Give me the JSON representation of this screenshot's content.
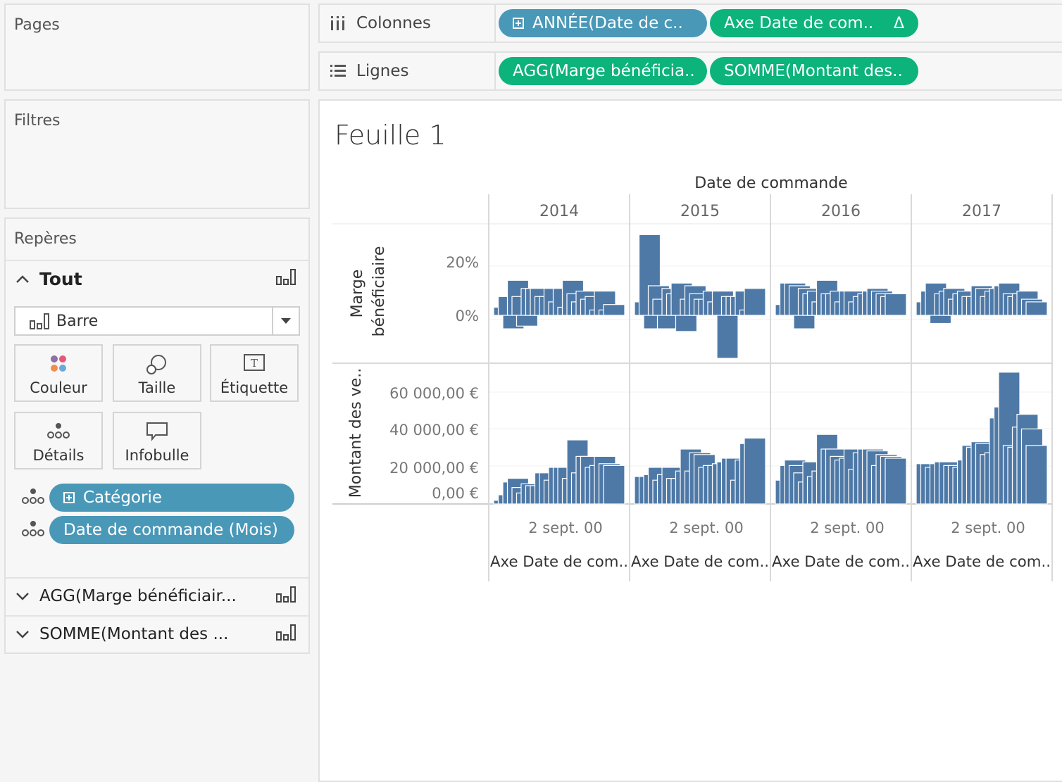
{
  "pages": {
    "title": "Pages"
  },
  "filters": {
    "title": "Filtres"
  },
  "marks": {
    "title": "Repères",
    "all_label": "Tout",
    "mark_type": "Barre",
    "buttons": {
      "color": "Couleur",
      "size": "Taille",
      "label": "Étiquette",
      "detail": "Détails",
      "tooltip": "Infobulle"
    },
    "fields": [
      "Catégorie",
      "Date de commande (Mois)"
    ],
    "sections": [
      "AGG(Marge bénéficiair...",
      "SOMME(Montant des ..."
    ]
  },
  "shelves": {
    "columns_label": "Colonnes",
    "columns_pills": [
      "ANNÉE(Date de c..",
      "Axe Date de com.."
    ],
    "columns_delta": "Δ",
    "rows_label": "Lignes",
    "rows_pills": [
      "AGG(Marge bénéficia..",
      "SOMME(Montant des.."
    ]
  },
  "sheet": {
    "title": "Feuille 1",
    "col_header": "Date de commande",
    "years": [
      "2014",
      "2015",
      "2016",
      "2017"
    ],
    "row1_axis_title_line1": "Marge",
    "row1_axis_title_line2": "bénéficiaire",
    "row2_axis_title": "Montant des ve..",
    "row1_ticks": [
      "20%",
      "0%"
    ],
    "row2_ticks": [
      "60 000,00 €",
      "40 000,00 €",
      "20 000,00 €",
      "0,00 €"
    ],
    "x_tick": "2 sept. 00",
    "x_axis_title": "Axe Date de com.."
  },
  "colors": {
    "bar": "#4e79a7",
    "blue_pill": "#4a98b8",
    "green_pill": "#0cb37a"
  },
  "chart_data": {
    "type": "bar",
    "categories": [
      "2014",
      "2015",
      "2016",
      "2017"
    ],
    "series": [
      {
        "name": "Marge bénéficiaire",
        "unit": "%",
        "values_by_year": [
          [
            3,
            7,
            -5,
            13,
            7,
            -4,
            10,
            10,
            10,
            7,
            7,
            10,
            5,
            10,
            3,
            13,
            8,
            5,
            9,
            6,
            7,
            2,
            9,
            2,
            4
          ],
          [
            5,
            30,
            -5,
            11,
            6,
            -5,
            10,
            8,
            12,
            -6,
            6,
            11,
            8,
            6,
            6,
            9,
            5,
            9,
            -16,
            7,
            7,
            7,
            9,
            2,
            10
          ],
          [
            4,
            12,
            12,
            11,
            -5,
            10,
            8,
            9,
            5,
            13,
            8,
            8,
            9,
            5,
            9,
            9,
            5,
            7,
            8,
            9,
            10,
            9,
            8,
            7,
            8
          ],
          [
            5,
            9,
            12,
            -3,
            8,
            9,
            10,
            6,
            8,
            9,
            7,
            7,
            11,
            10,
            7,
            9,
            10,
            11,
            12,
            8,
            7,
            8,
            9,
            6,
            5
          ]
        ]
      },
      {
        "name": "Montant des ventes",
        "unit": "€",
        "values_by_year": [
          [
            2000,
            5000,
            12000,
            14000,
            9000,
            6000,
            11000,
            10000,
            10000,
            17000,
            17000,
            13000,
            20000,
            20000,
            20000,
            14000,
            35000,
            17000,
            26000,
            26000,
            20000,
            21000,
            26000,
            22000,
            21000
          ],
          [
            15000,
            15000,
            16000,
            20000,
            13000,
            16000,
            20000,
            14000,
            14000,
            18000,
            30000,
            18000,
            28000,
            27000,
            20000,
            21000,
            21000,
            22000,
            23000,
            25000,
            25000,
            13000,
            24000,
            33000,
            36000
          ],
          [
            13000,
            21000,
            24000,
            21000,
            17000,
            12000,
            23000,
            15000,
            18000,
            38000,
            30000,
            30000,
            26000,
            24000,
            25000,
            30000,
            19000,
            28000,
            30000,
            30000,
            29000,
            21000,
            27000,
            26000,
            25000
          ],
          [
            22000,
            22000,
            20000,
            22000,
            23000,
            23000,
            21000,
            21000,
            20000,
            24000,
            32000,
            31000,
            34000,
            33000,
            27000,
            28000,
            47000,
            53000,
            72000,
            32000,
            31000,
            42000,
            49000,
            41000,
            32000
          ]
        ]
      }
    ],
    "x_axis_title": "Axe Date de com..",
    "row1_ylim": [
      -20,
      30
    ],
    "row2_ylim": [
      0,
      70000
    ],
    "row1_yticks": [
      "20%",
      "0%"
    ],
    "row2_yticks": [
      "60 000,00 €",
      "40 000,00 €",
      "20 000,00 €",
      "0,00 €"
    ]
  }
}
